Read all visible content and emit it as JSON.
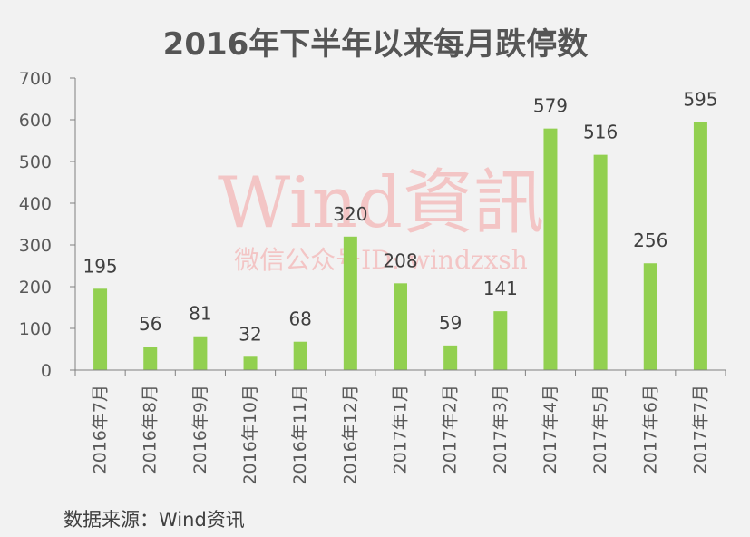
{
  "chart_data": {
    "type": "bar",
    "title": "2016年下半年以来每月跌停数",
    "categories": [
      "2016年7月",
      "2016年8月",
      "2016年9月",
      "2016年10月",
      "2016年11月",
      "2016年12月",
      "2017年1月",
      "2017年2月",
      "2017年3月",
      "2017年4月",
      "2017年5月",
      "2017年6月",
      "2017年7月"
    ],
    "values": [
      195,
      56,
      81,
      32,
      68,
      320,
      208,
      59,
      141,
      579,
      516,
      256,
      595
    ],
    "ylim": [
      0,
      700
    ],
    "yticks": [
      0,
      100,
      200,
      300,
      400,
      500,
      600,
      700
    ],
    "xlabel": "",
    "ylabel": "",
    "grid": false,
    "bar_color": "#92d050",
    "data_labels": true
  },
  "source": "数据来源：Wind资讯",
  "watermark": {
    "main": "Wind資訊",
    "sub": "微信公众号ID: windzxsh"
  },
  "colors": {
    "background": "#f2f2f2",
    "axis": "#808080",
    "bar": "#92d050",
    "watermark": "#f4b6b6"
  }
}
